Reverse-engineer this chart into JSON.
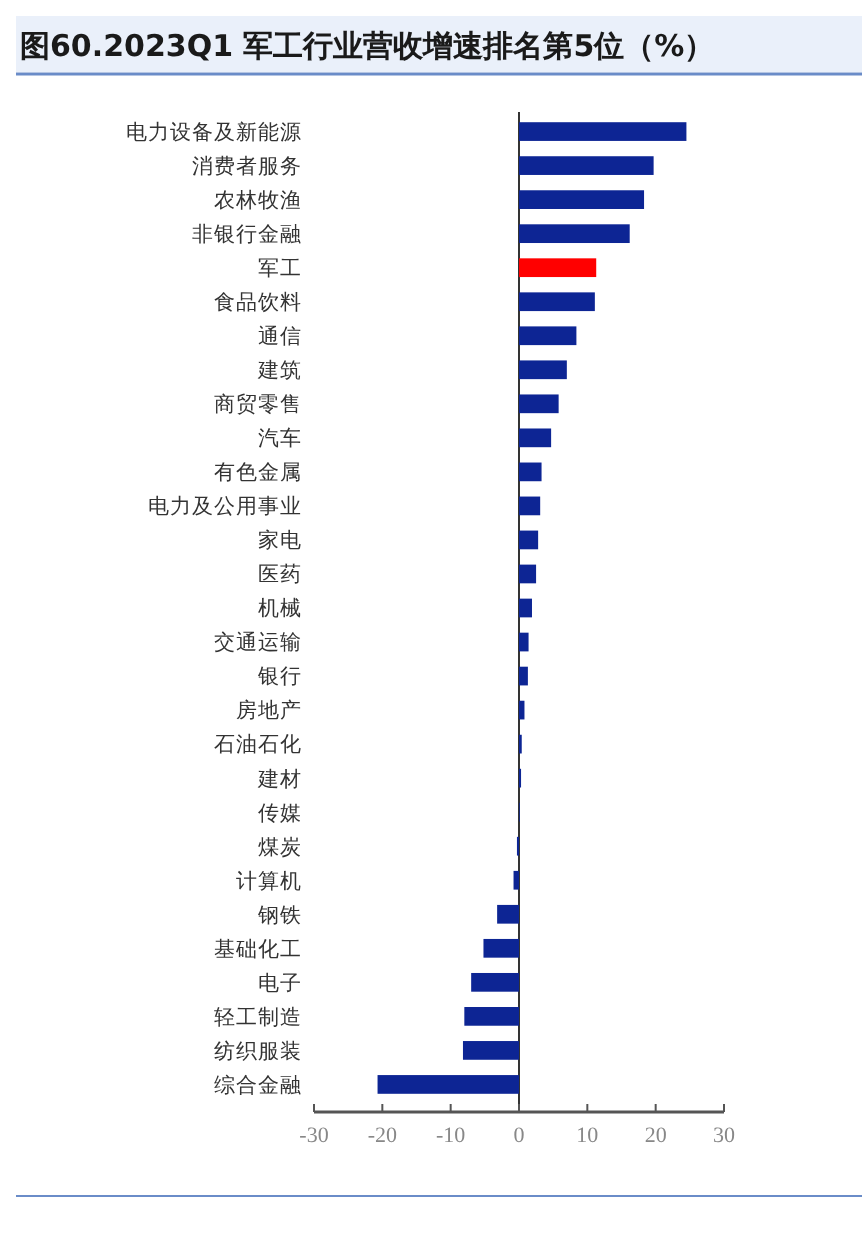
{
  "chart_data": {
    "type": "bar",
    "orientation": "horizontal",
    "title": "图60.2023Q1 军工行业营收增速排名第5位（%）",
    "categories": [
      "电力设备及新能源",
      "消费者服务",
      "农林牧渔",
      "非银行金融",
      "军工",
      "食品饮料",
      "通信",
      "建筑",
      "商贸零售",
      "汽车",
      "有色金属",
      "电力及公用事业",
      "家电",
      "医药",
      "机械",
      "交通运输",
      "银行",
      "房地产",
      "石油石化",
      "建材",
      "传媒",
      "煤炭",
      "计算机",
      "钢铁",
      "基础化工",
      "电子",
      "轻工制造",
      "纺织服装",
      "综合金融"
    ],
    "values": [
      24.5,
      19.7,
      18.3,
      16.2,
      11.3,
      11.1,
      8.4,
      7.0,
      5.8,
      4.7,
      3.3,
      3.1,
      2.8,
      2.5,
      1.9,
      1.4,
      1.3,
      0.8,
      0.4,
      0.3,
      0.1,
      -0.3,
      -0.8,
      -3.2,
      -5.2,
      -7.0,
      -8.0,
      -8.2,
      -20.7
    ],
    "colors": [
      "#0d2594",
      "#0d2594",
      "#0d2594",
      "#0d2594",
      "#ff0000",
      "#0d2594",
      "#0d2594",
      "#0d2594",
      "#0d2594",
      "#0d2594",
      "#0d2594",
      "#0d2594",
      "#0d2594",
      "#0d2594",
      "#0d2594",
      "#0d2594",
      "#0d2594",
      "#0d2594",
      "#0d2594",
      "#0d2594",
      "#0d2594",
      "#0d2594",
      "#0d2594",
      "#0d2594",
      "#0d2594",
      "#0d2594",
      "#0d2594",
      "#0d2594",
      "#0d2594"
    ],
    "xlim": [
      -30,
      30
    ],
    "xticks": [
      -30,
      -20,
      -10,
      0,
      10,
      20,
      30
    ]
  }
}
